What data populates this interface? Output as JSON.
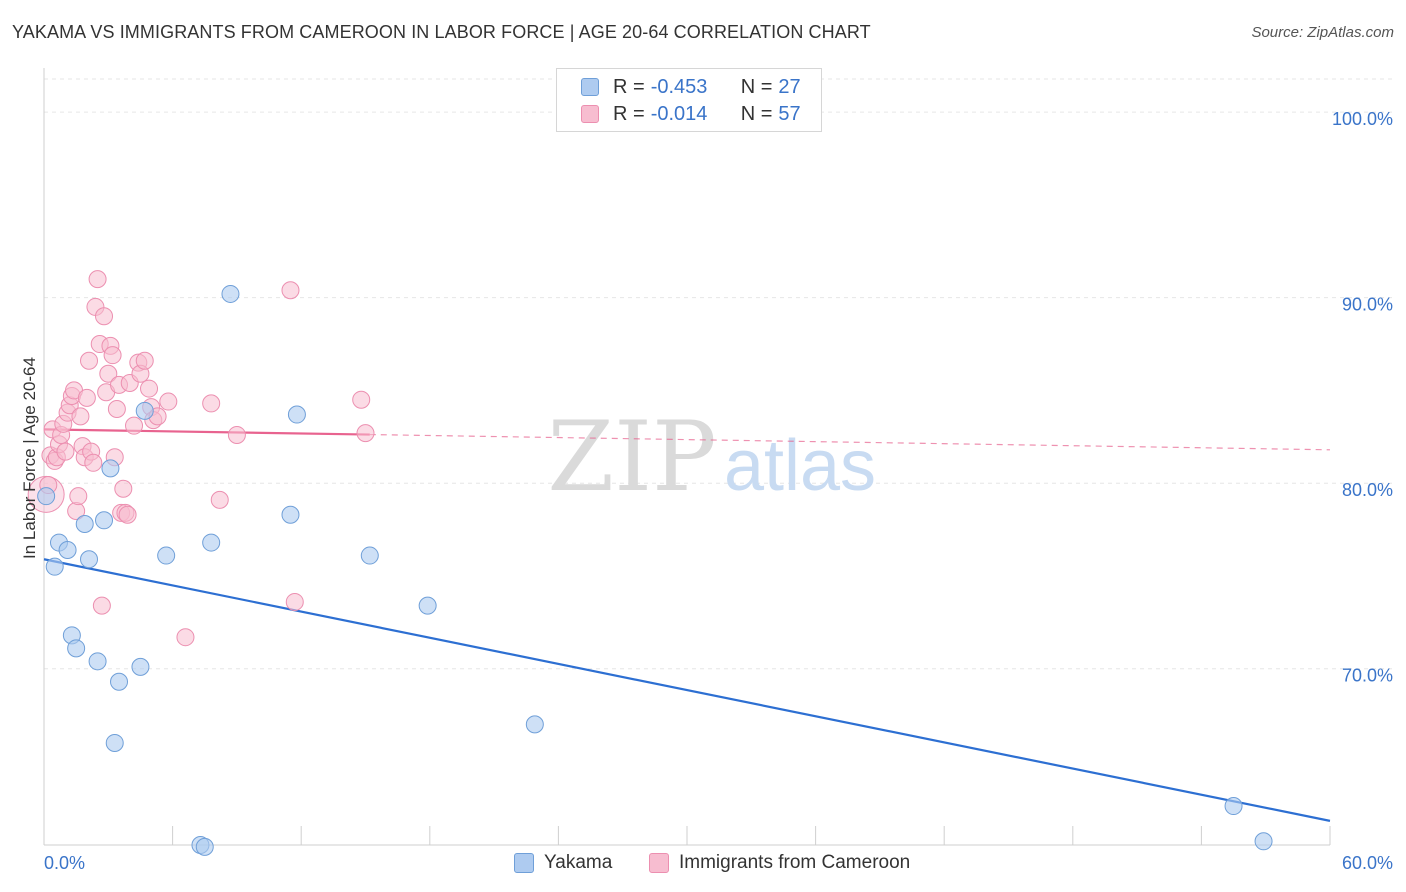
{
  "title": "YAKAMA VS IMMIGRANTS FROM CAMEROON IN LABOR FORCE | AGE 20-64 CORRELATION CHART",
  "source": "Source: ZipAtlas.com",
  "watermark": {
    "zip": "ZIP",
    "atlas": "atlas"
  },
  "legend": {
    "rows": [
      {
        "r_label": "R = ",
        "r_value": "-0.453",
        "n_label": "N = ",
        "n_value": "27"
      },
      {
        "r_label": "R = ",
        "r_value": "-0.014",
        "n_label": "N = ",
        "n_value": "57"
      }
    ]
  },
  "colors": {
    "yakama_fill": "#aecbf0",
    "yakama_stroke": "#6f9fd8",
    "yakama_line": "#2d6fd2",
    "cameroon_fill": "#f7bdd0",
    "cameroon_stroke": "#ec8fb0",
    "cameroon_line": "#e8638f",
    "tick_label": "#3a74c9",
    "grid": "#e6e6e6"
  },
  "chart_data": {
    "type": "scatter",
    "title": "YAKAMA VS IMMIGRANTS FROM CAMEROON IN LABOR FORCE | AGE 20-64 CORRELATION CHART",
    "xlabel": "",
    "ylabel": "In Labor Force | Age 20-64",
    "xlim": [
      0,
      60
    ],
    "ylim": [
      60.5,
      102
    ],
    "x_tick_labels": [
      "0.0%",
      "60.0%"
    ],
    "y_ticks": [
      70,
      80,
      90,
      100
    ],
    "y_tick_labels": [
      "70.0%",
      "80.0%",
      "90.0%",
      "100.0%"
    ],
    "grid": true,
    "legend_position": "bottom",
    "series": [
      {
        "name": "Yakama",
        "points": [
          [
            0.1,
            79.3
          ],
          [
            0.5,
            75.5
          ],
          [
            0.7,
            76.8
          ],
          [
            1.1,
            76.4
          ],
          [
            1.3,
            71.8
          ],
          [
            1.5,
            71.1
          ],
          [
            1.9,
            77.8
          ],
          [
            2.1,
            75.9
          ],
          [
            2.5,
            70.4
          ],
          [
            2.8,
            78.0
          ],
          [
            3.1,
            80.8
          ],
          [
            3.3,
            66.0
          ],
          [
            3.5,
            69.3
          ],
          [
            4.5,
            70.1
          ],
          [
            4.7,
            83.9
          ],
          [
            5.7,
            76.1
          ],
          [
            7.3,
            60.5
          ],
          [
            7.5,
            60.4
          ],
          [
            7.8,
            76.8
          ],
          [
            8.7,
            90.2
          ],
          [
            11.5,
            78.3
          ],
          [
            11.8,
            83.7
          ],
          [
            15.2,
            76.1
          ],
          [
            17.9,
            73.4
          ],
          [
            22.9,
            67.0
          ],
          [
            55.5,
            62.6
          ],
          [
            56.9,
            60.7
          ]
        ],
        "trend": {
          "x": [
            0,
            60
          ],
          "y": [
            75.9,
            61.8
          ]
        }
      },
      {
        "name": "Immigrants from Cameroon",
        "points": [
          [
            0.1,
            79.4
          ],
          [
            0.2,
            79.9
          ],
          [
            0.3,
            81.5
          ],
          [
            0.4,
            82.9
          ],
          [
            0.5,
            81.2
          ],
          [
            0.6,
            81.4
          ],
          [
            0.7,
            82.1
          ],
          [
            0.8,
            82.6
          ],
          [
            0.9,
            83.2
          ],
          [
            1.0,
            81.7
          ],
          [
            1.1,
            83.8
          ],
          [
            1.2,
            84.2
          ],
          [
            1.3,
            84.7
          ],
          [
            1.4,
            85.0
          ],
          [
            1.5,
            78.5
          ],
          [
            1.6,
            79.3
          ],
          [
            1.7,
            83.6
          ],
          [
            1.8,
            82.0
          ],
          [
            1.9,
            81.4
          ],
          [
            2.0,
            84.6
          ],
          [
            2.1,
            86.6
          ],
          [
            2.2,
            81.7
          ],
          [
            2.3,
            81.1
          ],
          [
            2.4,
            89.5
          ],
          [
            2.5,
            91.0
          ],
          [
            2.6,
            87.5
          ],
          [
            2.7,
            73.4
          ],
          [
            2.8,
            89.0
          ],
          [
            2.9,
            84.9
          ],
          [
            3.0,
            85.9
          ],
          [
            3.1,
            87.4
          ],
          [
            3.2,
            86.9
          ],
          [
            3.3,
            81.4
          ],
          [
            3.4,
            84.0
          ],
          [
            3.5,
            85.3
          ],
          [
            3.6,
            78.4
          ],
          [
            3.7,
            79.7
          ],
          [
            3.8,
            78.4
          ],
          [
            3.9,
            78.3
          ],
          [
            4.0,
            85.4
          ],
          [
            4.2,
            83.1
          ],
          [
            4.4,
            86.5
          ],
          [
            4.5,
            85.9
          ],
          [
            4.7,
            86.6
          ],
          [
            4.9,
            85.1
          ],
          [
            5.0,
            84.1
          ],
          [
            5.1,
            83.4
          ],
          [
            5.3,
            83.6
          ],
          [
            5.8,
            84.4
          ],
          [
            6.6,
            71.7
          ],
          [
            7.8,
            84.3
          ],
          [
            8.2,
            79.1
          ],
          [
            9.0,
            82.6
          ],
          [
            11.5,
            90.4
          ],
          [
            11.7,
            73.6
          ],
          [
            14.8,
            84.5
          ],
          [
            15.0,
            82.7
          ]
        ],
        "trend": {
          "x": [
            0,
            60
          ],
          "y": [
            82.9,
            81.8
          ],
          "solid_until_x": 15.2
        }
      }
    ]
  }
}
